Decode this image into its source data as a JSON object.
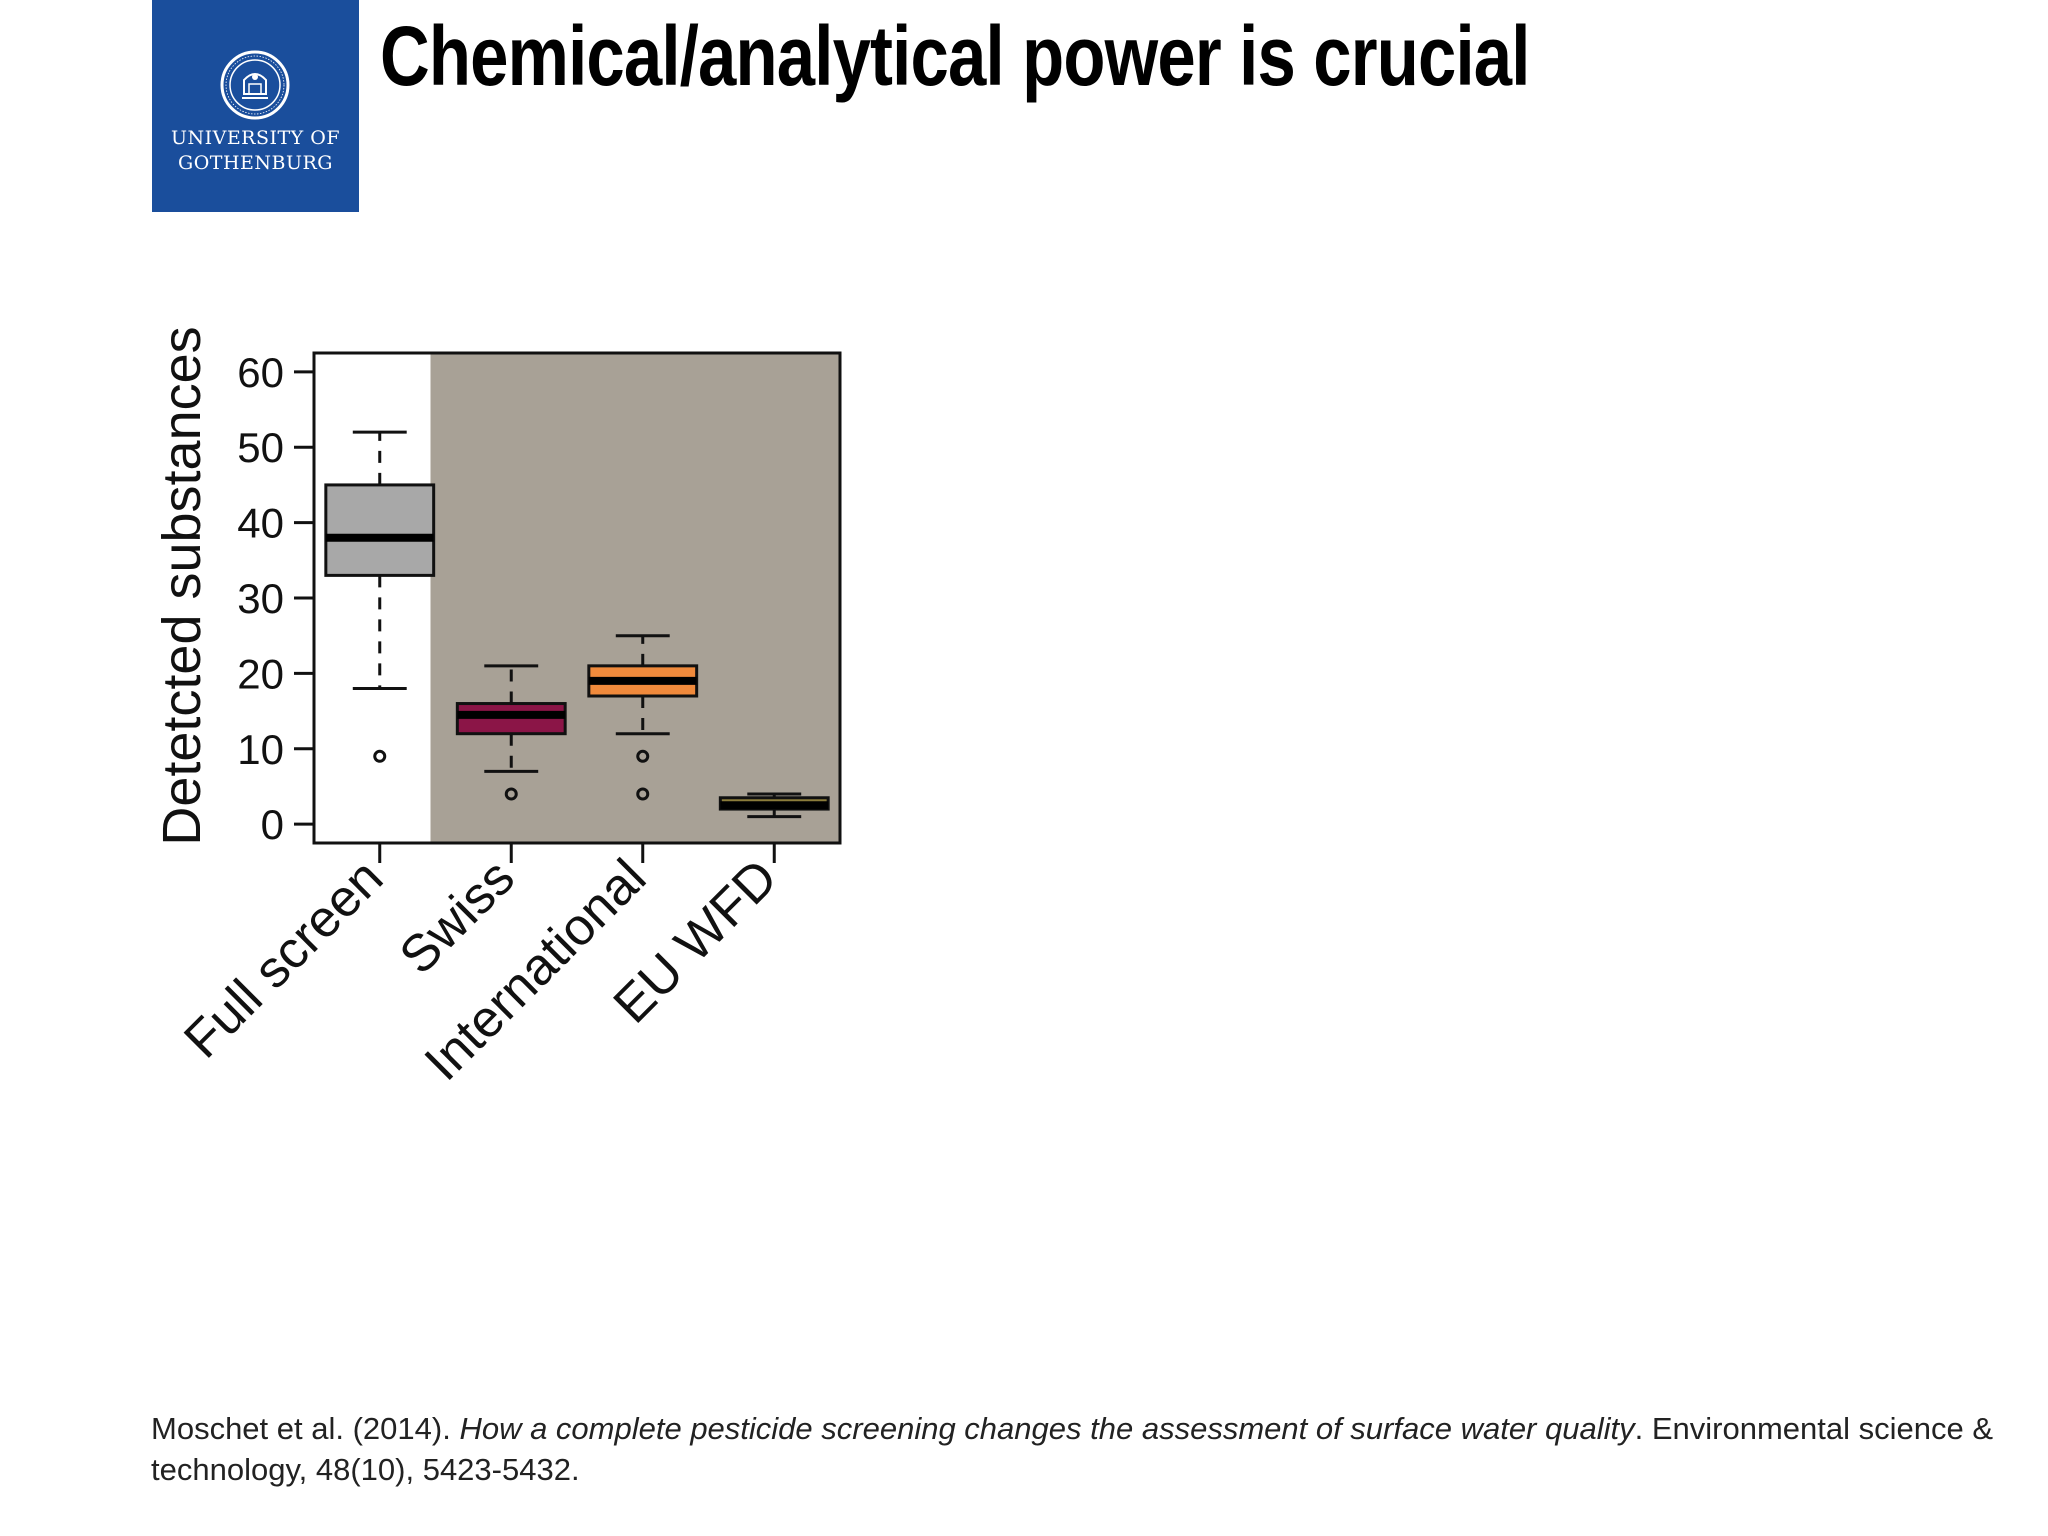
{
  "slide": {
    "title": "Chemical/analytical power is crucial",
    "logo": {
      "line1": "UNIVERSITY OF",
      "line2": "GOTHENBURG",
      "color": "#1a4e9c"
    },
    "citation": {
      "authors": "Moschet et al. (2014). ",
      "title": "How a complete pesticide screening changes the assessment of surface water quality",
      "rest": ". Environmental science & technology, 48(10), 5423-5432."
    }
  },
  "chart_data": {
    "type": "box",
    "ylabel": "Detetcted substances",
    "ylim": [
      -2.5,
      62.5
    ],
    "yticks": [
      0,
      10,
      20,
      30,
      40,
      50,
      60
    ],
    "categories": [
      "Full screen",
      "Swiss",
      "International",
      "EU WFD"
    ],
    "boxes": [
      {
        "category": "Full screen",
        "whisker_low": 18,
        "q1": 33,
        "median": 38,
        "q3": 45,
        "whisker_high": 52,
        "outliers": [
          9
        ],
        "color": "#a8a8a8"
      },
      {
        "category": "Swiss",
        "whisker_low": 7,
        "q1": 12,
        "median": 14.5,
        "q3": 16,
        "whisker_high": 21,
        "outliers": [
          4
        ],
        "color": "#8b1547"
      },
      {
        "category": "International",
        "whisker_low": 12,
        "q1": 17,
        "median": 19,
        "q3": 21,
        "whisker_high": 25,
        "outliers": [
          9,
          4
        ],
        "color": "#f08a3c"
      },
      {
        "category": "EU WFD",
        "whisker_low": 1,
        "q1": 2,
        "median": 2.5,
        "q3": 3.5,
        "whisker_high": 4,
        "outliers": [],
        "color": "#8c7d3c"
      }
    ],
    "shaded_region": {
      "from_category": "Swiss",
      "to_category": "EU WFD",
      "color": "#a8a196"
    },
    "grid": false,
    "legend": "none"
  }
}
